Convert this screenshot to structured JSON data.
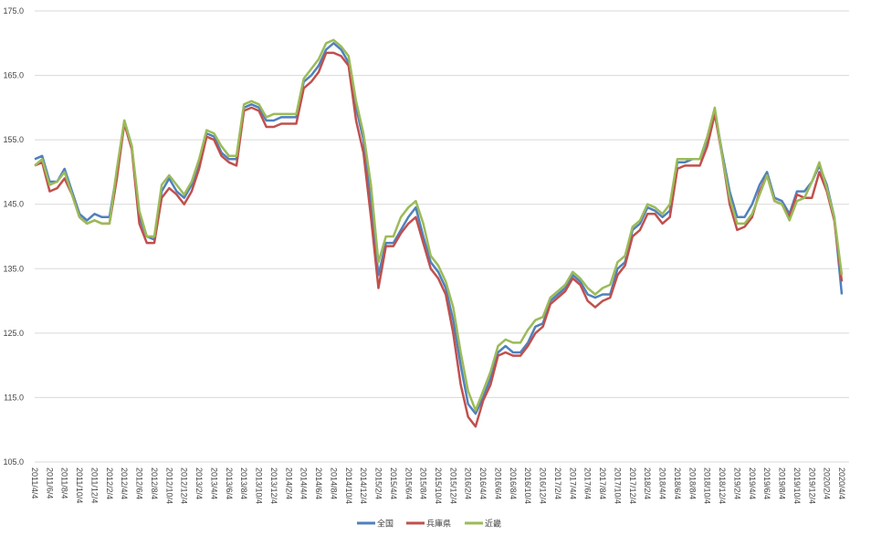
{
  "chart_data": {
    "type": "line",
    "categories": [
      "2011/4/4",
      null,
      "2011/6/4",
      null,
      "2011/8/4",
      null,
      "2011/10/4",
      null,
      "2011/12/4",
      null,
      "2012/2/4",
      null,
      "2012/4/4",
      null,
      "2012/6/4",
      null,
      "2012/8/4",
      null,
      "2012/10/4",
      null,
      "2012/12/4",
      null,
      "2013/2/4",
      null,
      "2013/4/4",
      null,
      "2013/6/4",
      null,
      "2013/8/4",
      null,
      "2013/10/4",
      null,
      "2013/12/4",
      null,
      "2014/2/4",
      null,
      "2014/4/4",
      null,
      "2014/6/4",
      null,
      "2014/8/4",
      null,
      "2014/10/4",
      null,
      "2014/12/4",
      null,
      "2015/2/4",
      null,
      "2015/4/4",
      null,
      "2015/6/4",
      null,
      "2015/8/4",
      null,
      "2015/10/4",
      null,
      "2015/12/4",
      null,
      "2016/2/4",
      null,
      "2016/4/4",
      null,
      "2016/6/4",
      null,
      "2016/8/4",
      null,
      "2016/10/4",
      null,
      "2016/12/4",
      null,
      "2017/2/4",
      null,
      "2017/4/4",
      null,
      "2017/6/4",
      null,
      "2017/8/4",
      null,
      "2017/10/4",
      null,
      "2017/12/4",
      null,
      "2018/2/4",
      null,
      "2018/4/4",
      null,
      "2018/6/4",
      null,
      "2018/8/4",
      null,
      "2018/10/4",
      null,
      "2018/12/4",
      null,
      "2019/2/4",
      null,
      "2019/4/4",
      null,
      "2019/6/4",
      null,
      "2019/8/4",
      null,
      "2019/10/4",
      null,
      "2019/12/4",
      null,
      "2020/2/4",
      null,
      "2020/4/4"
    ],
    "series": [
      {
        "name": "全国",
        "color": "#4f81bd",
        "values": [
          152,
          152.5,
          148.5,
          148.5,
          150.5,
          147,
          143.5,
          142.5,
          143.5,
          143,
          143,
          150,
          158,
          154,
          143,
          140,
          139.5,
          147,
          149,
          147,
          146,
          148,
          151.5,
          156,
          155.5,
          153,
          152,
          152,
          160,
          160.5,
          160,
          158,
          158,
          158.5,
          158.5,
          158.5,
          164,
          165,
          166.5,
          169,
          170,
          169,
          167,
          160,
          155,
          145,
          134,
          139,
          139,
          141,
          143,
          144.5,
          140,
          136,
          134.5,
          132,
          127,
          120,
          114,
          112.5,
          115,
          118,
          122,
          123,
          122,
          122,
          123.5,
          126,
          126.5,
          130,
          131,
          132,
          134,
          133,
          131,
          130.5,
          131,
          131,
          135,
          136,
          141,
          142,
          144.5,
          144,
          143,
          144,
          151.5,
          151.5,
          152,
          152,
          155,
          159.5,
          153,
          147,
          143,
          143,
          145,
          148,
          150,
          146,
          145.5,
          143.5,
          147,
          147,
          148.5,
          151,
          148,
          143,
          131
        ]
      },
      {
        "name": "兵庫県",
        "color": "#c0504d",
        "values": [
          151,
          151.5,
          147,
          147.5,
          149,
          146.5,
          143,
          142,
          142.5,
          142,
          142,
          149,
          157.5,
          153.5,
          142,
          139,
          139,
          146,
          147.5,
          146.5,
          145,
          147,
          150.5,
          155.5,
          155,
          152.5,
          151.5,
          151,
          159.5,
          160,
          159.5,
          157,
          157,
          157.5,
          157.5,
          157.5,
          163,
          164,
          165.5,
          168.5,
          168.5,
          168,
          166.5,
          158,
          153,
          143,
          132,
          138.5,
          138.5,
          140.5,
          142,
          143,
          139,
          135,
          133.5,
          131,
          125,
          117,
          112,
          110.5,
          114.5,
          117,
          121.5,
          122,
          121.5,
          121.5,
          123,
          125,
          126,
          129.5,
          130.5,
          131.5,
          133.5,
          132.5,
          130,
          129,
          130,
          130.5,
          134,
          135.5,
          140,
          141,
          143.5,
          143.5,
          142,
          143,
          150.5,
          151,
          151,
          151,
          154,
          159,
          152.5,
          145,
          141,
          141.5,
          143,
          147,
          149.5,
          145.5,
          145,
          143,
          146.5,
          146,
          146,
          150,
          147,
          142.5,
          133
        ]
      },
      {
        "name": "近畿",
        "color": "#9bbb59",
        "values": [
          151,
          152,
          148,
          148.5,
          150,
          146.5,
          143,
          142,
          142.5,
          142,
          142,
          150.5,
          158,
          154,
          144,
          140,
          140,
          148,
          149.5,
          148,
          146.5,
          148.5,
          152,
          156.5,
          156,
          154,
          152.5,
          152.5,
          160.5,
          161,
          160.5,
          158.5,
          159,
          159,
          159,
          159,
          164.5,
          166,
          167.5,
          170,
          170.5,
          169.5,
          168,
          161,
          156,
          148,
          136,
          140,
          140,
          143,
          144.5,
          145.5,
          142,
          137,
          135.5,
          133,
          129,
          122,
          116,
          113,
          116,
          119,
          123,
          124,
          123.5,
          123.5,
          125.5,
          127,
          127.5,
          130.5,
          131.5,
          132.5,
          134.5,
          133.5,
          132,
          131,
          132,
          132.5,
          136,
          137,
          141.5,
          142.5,
          145,
          144.5,
          143.5,
          145,
          152,
          152,
          152,
          152,
          155.5,
          160,
          152.5,
          146,
          142,
          142,
          143.5,
          146.5,
          149.5,
          145.5,
          145,
          142.5,
          145.5,
          146,
          148.5,
          151.5,
          147.5,
          143,
          134
        ]
      }
    ],
    "ylim": [
      105,
      175
    ],
    "yticks": [
      {
        "value": 105,
        "label": "105.0"
      },
      {
        "value": 115,
        "label": "115.0"
      },
      {
        "value": 125,
        "label": "125.0"
      },
      {
        "value": 135,
        "label": "135.0"
      },
      {
        "value": 145,
        "label": "145.0"
      },
      {
        "value": 155,
        "label": "155.0"
      },
      {
        "value": 165,
        "label": "165.0"
      },
      {
        "value": 175,
        "label": "175.0"
      }
    ],
    "grid": true,
    "legend": "bottom"
  }
}
